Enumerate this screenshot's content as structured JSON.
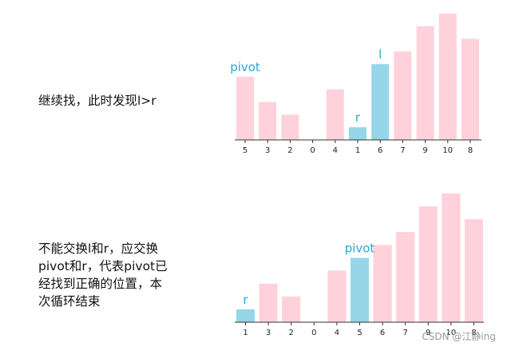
{
  "captions": {
    "top": [
      "继续找，此时发现l>r"
    ],
    "bottom": [
      "不能交换l和r，应交换",
      "pivot和r，代表pivot已",
      "经找到正确的位置，本",
      "次循环结束"
    ]
  },
  "watermark": "CSDN @江静ing",
  "colors": {
    "bar": "#ffd1da",
    "highlight": "#96d6e8",
    "marker": "#2aa6d6"
  },
  "chart_data": [
    {
      "type": "bar",
      "categories": [
        "5",
        "3",
        "2",
        "0",
        "4",
        "1",
        "6",
        "7",
        "9",
        "10",
        "8"
      ],
      "values": [
        5,
        3,
        2,
        0,
        4,
        1,
        6,
        7,
        9,
        10,
        8
      ],
      "highlight": [
        5,
        6
      ],
      "markers": [
        {
          "label": "pivot",
          "index": 0
        },
        {
          "label": "r",
          "index": 5
        },
        {
          "label": "l",
          "index": 6
        }
      ]
    },
    {
      "type": "bar",
      "categories": [
        "1",
        "3",
        "2",
        "0",
        "4",
        "5",
        "6",
        "7",
        "9",
        "10",
        "8"
      ],
      "values": [
        1,
        3,
        2,
        0,
        4,
        5,
        6,
        7,
        9,
        10,
        8
      ],
      "highlight": [
        0,
        5
      ],
      "markers": [
        {
          "label": "r",
          "index": 0
        },
        {
          "label": "pivot",
          "index": 5
        }
      ]
    }
  ]
}
